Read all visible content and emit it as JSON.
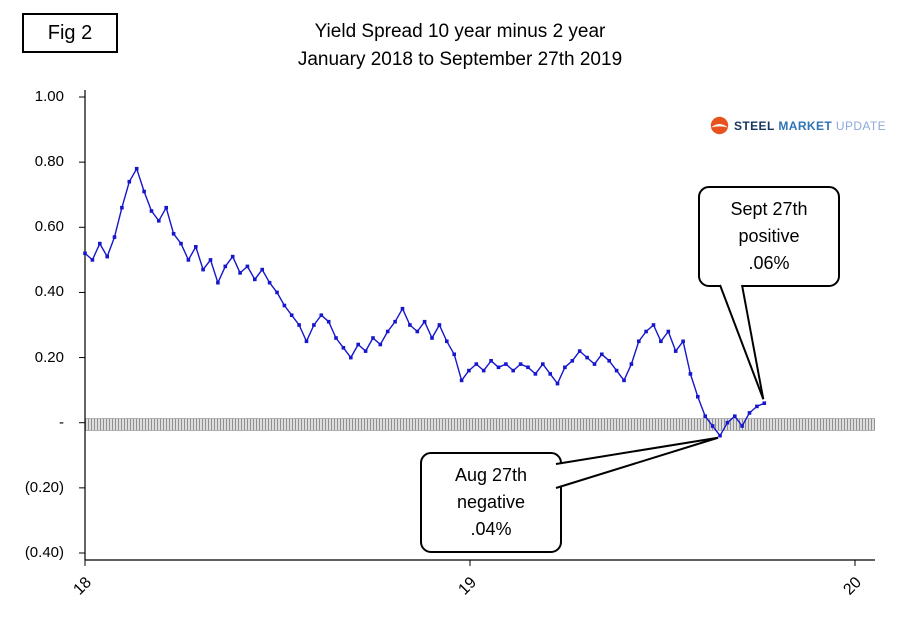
{
  "figure_label": "Fig 2",
  "title_line1": "Yield Spread 10 year minus 2 year",
  "title_line2": "January 2018 to September 27th 2019",
  "logo": {
    "steel": "STEEL",
    "market": "MARKET",
    "update": "UPDATE",
    "icon_color": "#e8521e"
  },
  "callouts": {
    "sept": {
      "line1": "Sept 27th",
      "line2": "positive",
      "line3": ".06%"
    },
    "aug": {
      "line1": "Aug 27th",
      "line2": "negative",
      "line3": ".04%"
    }
  },
  "chart_data": {
    "type": "line",
    "title": "Yield Spread 10 year minus 2 year, January 2018 to September 27th 2019",
    "x_axis": {
      "unit": "decimal years",
      "range": [
        2018,
        2020
      ],
      "ticks": [
        2018,
        2019,
        2020
      ],
      "tick_labels": [
        "18",
        "19",
        "20"
      ]
    },
    "y_axis": {
      "unit": "percent",
      "range": [
        -0.4,
        1.0
      ],
      "ticks": [
        1.0,
        0.8,
        0.6,
        0.4,
        0.2,
        0,
        -0.2,
        -0.4
      ],
      "tick_labels": [
        "1.00",
        "0.80",
        "0.60",
        "0.40",
        "0.20",
        "-",
        "(0.20)",
        "(0.40)"
      ]
    },
    "grid": "off",
    "zero_band": true,
    "x_start": 2018.0,
    "x_step_years": 0.019178,
    "series": [
      {
        "name": "10-year minus 2-year Treasury yield spread (%)",
        "color": "#1616cc",
        "marker": "square",
        "y": [
          0.52,
          0.5,
          0.55,
          0.51,
          0.57,
          0.66,
          0.74,
          0.78,
          0.71,
          0.65,
          0.62,
          0.66,
          0.58,
          0.55,
          0.5,
          0.54,
          0.47,
          0.5,
          0.43,
          0.48,
          0.51,
          0.46,
          0.48,
          0.44,
          0.47,
          0.43,
          0.4,
          0.36,
          0.33,
          0.3,
          0.25,
          0.3,
          0.33,
          0.31,
          0.26,
          0.23,
          0.2,
          0.24,
          0.22,
          0.26,
          0.24,
          0.28,
          0.31,
          0.35,
          0.3,
          0.28,
          0.31,
          0.26,
          0.3,
          0.25,
          0.21,
          0.13,
          0.16,
          0.18,
          0.16,
          0.19,
          0.17,
          0.18,
          0.16,
          0.18,
          0.17,
          0.15,
          0.18,
          0.15,
          0.12,
          0.17,
          0.19,
          0.22,
          0.2,
          0.18,
          0.21,
          0.19,
          0.16,
          0.13,
          0.18,
          0.25,
          0.28,
          0.3,
          0.25,
          0.28,
          0.22,
          0.25,
          0.15,
          0.08,
          0.02,
          -0.01,
          -0.04,
          0.0,
          0.02,
          -0.01,
          0.03,
          0.05,
          0.06
        ]
      }
    ],
    "annotations": [
      {
        "text": "Sept 27th positive .06%",
        "x_label": "Sept 27 2019",
        "y": 0.06
      },
      {
        "text": "Aug 27th negative .04%",
        "x_label": "Aug 27 2019",
        "y": -0.04
      }
    ]
  }
}
